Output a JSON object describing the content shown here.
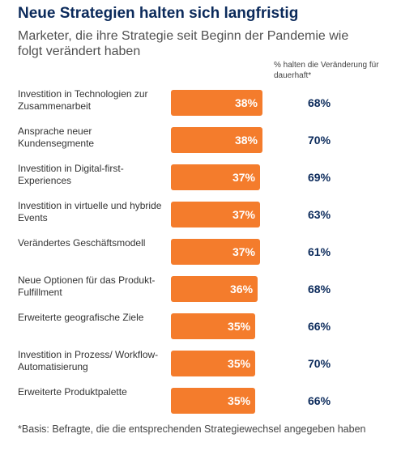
{
  "title": "Neue Strategien halten sich langfristig",
  "subtitle": "Marketer, die ihre Strategie seit Beginn der Pandemie wie folgt verändert haben",
  "column_header": "% halten die Veränderung für dauerhaft*",
  "footnote": "*Basis: Befragte, die die entsprechenden Strategiewechsel angegeben haben",
  "colors": {
    "bar": "#f47c2c",
    "title": "#0b2a5b",
    "value": "#0b2a5b"
  },
  "chart_data": {
    "type": "bar",
    "orientation": "horizontal",
    "categories": [
      "Investition in Technologien zur Zusammenarbeit",
      "Ansprache neuer Kundensegmente",
      "Investition in Digital-first-Experiences",
      "Investition in virtuelle und hybride Events",
      "Verändertes Geschäftsmodell",
      "Neue Optionen für das Produkt-Fulfillment",
      "Erweiterte geografische Ziele",
      "Investition in Prozess/ Workflow-Automatisierung",
      "Erweiterte Produktpalette"
    ],
    "series": [
      {
        "values": [
          38,
          38,
          37,
          37,
          37,
          36,
          35,
          35,
          35
        ],
        "labels": [
          "38%",
          "38%",
          "37%",
          "37%",
          "37%",
          "36%",
          "35%",
          "35%",
          "35%"
        ]
      },
      {
        "name": "% halten die Veränderung für dauerhaft*",
        "values": [
          68,
          70,
          69,
          63,
          61,
          68,
          66,
          70,
          66
        ],
        "labels": [
          "68%",
          "70%",
          "69%",
          "63%",
          "61%",
          "68%",
          "66%",
          "70%",
          "66%"
        ]
      }
    ]
  }
}
